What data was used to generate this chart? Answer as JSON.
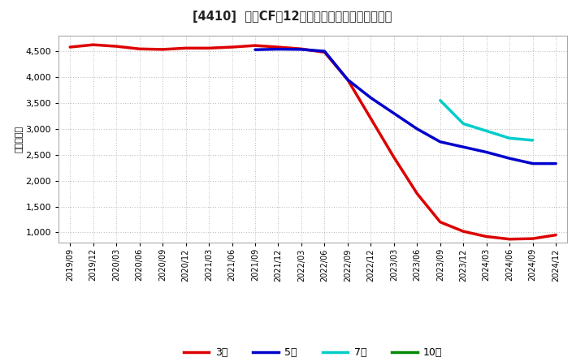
{
  "title": "[4410]  営業CFの12か月移動合計の平均値の推移",
  "ylabel": "（百万円）",
  "background_color": "#ffffff",
  "plot_background": "#ffffff",
  "grid_color": "#b0b0b0",
  "ylim": [
    800,
    4800
  ],
  "yticks": [
    1000,
    1500,
    2000,
    2500,
    3000,
    3500,
    4000,
    4500
  ],
  "series": {
    "3year": {
      "label": "3年",
      "color": "#dd0000",
      "linewidth": 2.5,
      "x": [
        "2019/09",
        "2019/12",
        "2020/03",
        "2020/06",
        "2020/09",
        "2020/12",
        "2021/03",
        "2021/06",
        "2021/09",
        "2021/12",
        "2022/03",
        "2022/06",
        "2022/09",
        "2022/12",
        "2023/03",
        "2023/06",
        "2023/09",
        "2023/12",
        "2024/03",
        "2024/06",
        "2024/09",
        "2024/12"
      ],
      "y": [
        4580,
        4625,
        4595,
        4545,
        4535,
        4560,
        4560,
        4580,
        4610,
        4580,
        4545,
        4480,
        3950,
        3200,
        2450,
        1750,
        1200,
        1020,
        920,
        870,
        880,
        950
      ]
    },
    "5year": {
      "label": "5年",
      "color": "#0000cc",
      "linewidth": 2.5,
      "x": [
        "2021/09",
        "2021/12",
        "2022/03",
        "2022/06",
        "2022/09",
        "2022/12",
        "2023/03",
        "2023/06",
        "2023/09",
        "2023/12",
        "2024/03",
        "2024/06",
        "2024/09",
        "2024/12"
      ],
      "y": [
        4530,
        4540,
        4535,
        4500,
        3950,
        3600,
        3300,
        3000,
        2750,
        2650,
        2550,
        2430,
        2330,
        2330
      ]
    },
    "7year": {
      "label": "7年",
      "color": "#00cccc",
      "linewidth": 2.5,
      "x": [
        "2023/09",
        "2023/12",
        "2024/03",
        "2024/06",
        "2024/09"
      ],
      "y": [
        3550,
        3100,
        2960,
        2820,
        2780
      ]
    },
    "10year": {
      "label": "10年",
      "color": "#008800",
      "linewidth": 2.5,
      "x": [],
      "y": []
    }
  },
  "xtick_labels": [
    "2019/09",
    "2019/12",
    "2020/03",
    "2020/06",
    "2020/09",
    "2020/12",
    "2021/03",
    "2021/06",
    "2021/09",
    "2021/12",
    "2022/03",
    "2022/06",
    "2022/09",
    "2022/12",
    "2023/03",
    "2023/06",
    "2023/09",
    "2023/12",
    "2024/03",
    "2024/06",
    "2024/09",
    "2024/12"
  ],
  "legend_labels": [
    "3年",
    "5年",
    "7年",
    "10年"
  ],
  "legend_colors": [
    "#dd0000",
    "#0000cc",
    "#00cccc",
    "#008800"
  ]
}
